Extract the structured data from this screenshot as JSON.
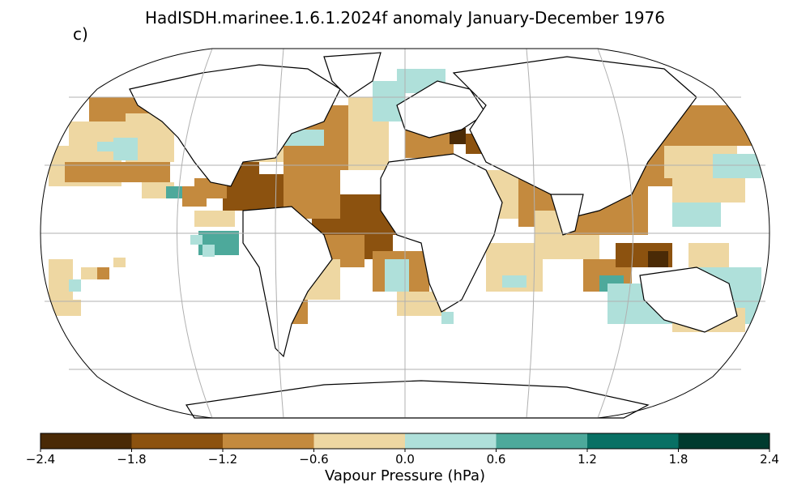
{
  "title": "HadISDH.marinee.1.6.1.2024f anomaly January-December 1976",
  "panel_label": "c)",
  "colorbar": {
    "label": "Vapour Pressure (hPa)",
    "ticks": [
      "−2.4",
      "−1.8",
      "−1.2",
      "−0.6",
      "0.0",
      "0.6",
      "1.2",
      "1.8",
      "2.4"
    ],
    "colors": [
      "#4a2a06",
      "#8c520f",
      "#c48a3e",
      "#eed7a2",
      "#afe0da",
      "#4da99b",
      "#087064",
      "#003b2f"
    ]
  },
  "map": {
    "projection": "Robinson",
    "gridlines": true,
    "coastline_color": "#000000",
    "gridline_color": "#b0b0b0"
  }
}
